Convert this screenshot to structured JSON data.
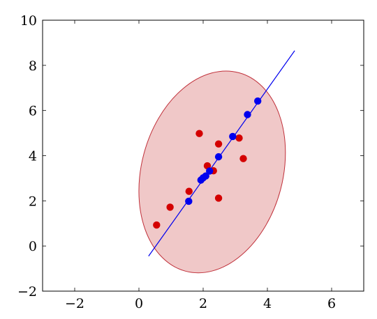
{
  "chart_data": {
    "type": "scatter",
    "title": "",
    "xlabel": "",
    "ylabel": "",
    "xlim": [
      -3,
      7
    ],
    "ylim": [
      -2,
      10
    ],
    "xticks": [
      -2,
      0,
      2,
      4,
      6
    ],
    "yticks": [
      -2,
      0,
      2,
      4,
      6,
      8,
      10
    ],
    "xtick_labels": [
      "−2",
      "0",
      "2",
      "4",
      "6"
    ],
    "ytick_labels": [
      "−2",
      "0",
      "2",
      "4",
      "6",
      "8",
      "10"
    ],
    "grid": false,
    "series": [
      {
        "kind": "points",
        "color": "#d40000",
        "points": [
          [
            0.55,
            0.93
          ],
          [
            0.97,
            1.72
          ],
          [
            1.56,
            2.42
          ],
          [
            1.88,
            4.98
          ],
          [
            2.13,
            3.55
          ],
          [
            2.32,
            3.33
          ],
          [
            2.48,
            2.12
          ],
          [
            2.48,
            4.52
          ],
          [
            3.12,
            4.78
          ],
          [
            3.25,
            3.87
          ]
        ]
      },
      {
        "kind": "points",
        "color": "#0000ee",
        "points": [
          [
            1.55,
            1.98
          ],
          [
            1.93,
            2.92
          ],
          [
            2.0,
            3.02
          ],
          [
            2.08,
            3.1
          ],
          [
            2.2,
            3.32
          ],
          [
            2.48,
            3.95
          ],
          [
            2.92,
            4.85
          ],
          [
            3.38,
            5.82
          ],
          [
            3.7,
            6.42
          ]
        ]
      },
      {
        "kind": "line",
        "color": "#0000ee",
        "points": [
          [
            0.3,
            -0.45
          ],
          [
            4.85,
            8.65
          ]
        ]
      }
    ],
    "ellipse": {
      "center": [
        2.28,
        3.28
      ],
      "rx": 2.2,
      "ry": 4.55,
      "rotate_deg": 15,
      "fill": "#f0c8c8",
      "stroke": "#c0303a"
    }
  }
}
